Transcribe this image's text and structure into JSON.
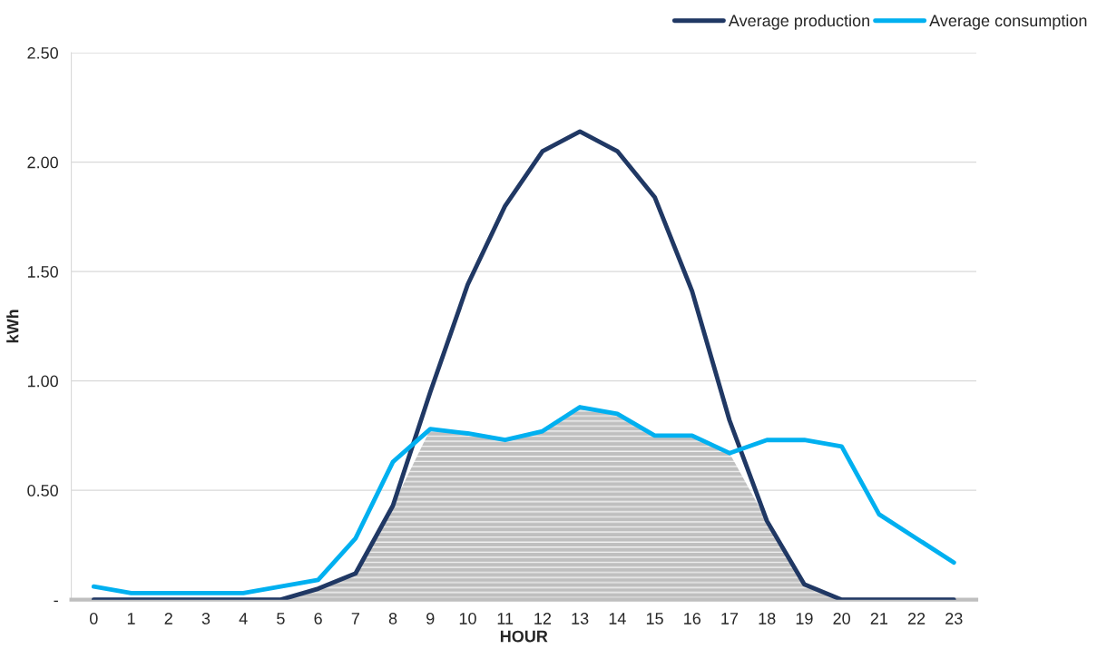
{
  "chart_data": {
    "type": "line",
    "xlabel": "HOUR",
    "ylabel": "kWh",
    "categories": [
      "0",
      "1",
      "2",
      "3",
      "4",
      "5",
      "6",
      "7",
      "8",
      "9",
      "10",
      "11",
      "12",
      "13",
      "14",
      "15",
      "16",
      "17",
      "18",
      "19",
      "20",
      "21",
      "22",
      "23"
    ],
    "series": [
      {
        "type": "area",
        "color": "#bfbfbf",
        "values": [
          0,
          0,
          0,
          0,
          0,
          0,
          0.05,
          0.12,
          0.43,
          0.78,
          0.76,
          0.73,
          0.77,
          0.88,
          0.85,
          0.75,
          0.75,
          0.67,
          0.36,
          0.07,
          0,
          0,
          0,
          0
        ]
      },
      {
        "name": "Average production",
        "color": "#203864",
        "values": [
          0,
          0,
          0,
          0,
          0,
          0,
          0.05,
          0.12,
          0.43,
          0.95,
          1.44,
          1.8,
          2.05,
          2.14,
          2.05,
          1.84,
          1.41,
          0.82,
          0.36,
          0.07,
          0,
          0,
          0,
          0
        ]
      },
      {
        "name": "Average consumption",
        "color": "#00b0f0",
        "values": [
          0.06,
          0.03,
          0.03,
          0.03,
          0.03,
          0.06,
          0.09,
          0.28,
          0.63,
          0.78,
          0.76,
          0.73,
          0.77,
          0.88,
          0.85,
          0.75,
          0.75,
          0.67,
          0.73,
          0.73,
          0.7,
          0.39,
          0.28,
          0.17
        ]
      }
    ],
    "ylim": [
      0,
      2.5
    ],
    "yticks": [
      {
        "value": 0,
        "label": "-"
      },
      {
        "value": 0.5,
        "label": "0.50"
      },
      {
        "value": 1,
        "label": "1.00"
      },
      {
        "value": 1.5,
        "label": "1.50"
      },
      {
        "value": 2,
        "label": "2.00"
      },
      {
        "value": 2.5,
        "label": "2.50"
      }
    ],
    "grid": "y",
    "legend": "top right"
  }
}
